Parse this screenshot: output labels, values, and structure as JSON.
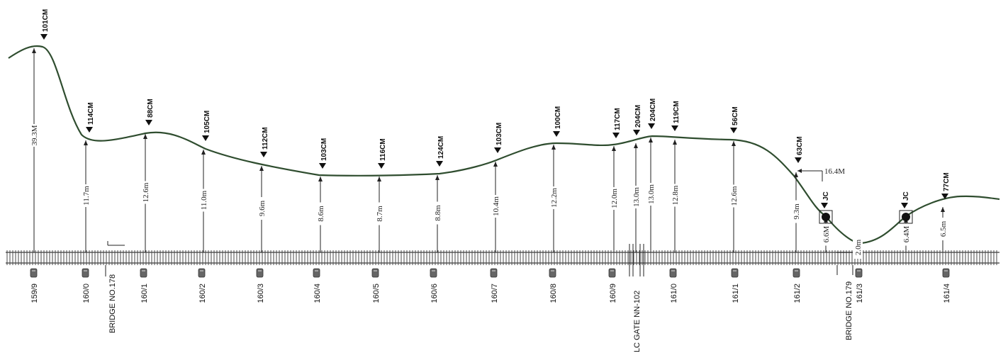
{
  "colors": {
    "curve": "#2f4d2f",
    "track": "#5a5a5a",
    "ink": "#111111"
  },
  "clearances": [
    {
      "label": "101CM",
      "dim": "39.3M",
      "km": "159/9"
    },
    {
      "label": "114CM",
      "dim": "11.7m",
      "km": "160/0"
    },
    {
      "label": "88CM",
      "dim": "12.6m",
      "km": "160/1"
    },
    {
      "label": "105CM",
      "dim": "11.0m",
      "km": "160/2"
    },
    {
      "label": "112CM",
      "dim": "9.6m",
      "km": "160/3"
    },
    {
      "label": "103CM",
      "dim": "8.6m",
      "km": "160/4"
    },
    {
      "label": "116CM",
      "dim": "8.7m",
      "km": "160/5"
    },
    {
      "label": "124CM",
      "dim": "8.8m",
      "km": "160/6"
    },
    {
      "label": "103CM",
      "dim": "10.4m",
      "km": "160/7"
    },
    {
      "label": "100CM",
      "dim": "12.2m",
      "km": "160/8"
    },
    {
      "label": "117CM",
      "dim": "12.0m",
      "km": "160/9"
    },
    {
      "label": "204CM",
      "dim": "13.0m",
      "km": ""
    },
    {
      "label": "204CM",
      "dim": "13.0m",
      "km": ""
    },
    {
      "label": "119CM",
      "dim": "12.8m",
      "km": "161/0"
    },
    {
      "label": "56CM",
      "dim": "12.6m",
      "km": "161/1"
    },
    {
      "label": "63CM",
      "dim": "9.3m",
      "km": "161/2"
    },
    {
      "label": "JC",
      "dim": "6.6M",
      "km": ""
    },
    {
      "label": "",
      "dim": "2.0m",
      "km": "161/3"
    },
    {
      "label": "JC",
      "dim": "6.4M",
      "km": ""
    },
    {
      "label": "77CM",
      "dim": "6.5m",
      "km": "161/4"
    }
  ],
  "extra_dimension": "16.4M",
  "bridges": [
    "BRIDGE NO.178",
    "BRIDGE NO.179"
  ],
  "level_crossing": "LC GATE NN-102"
}
